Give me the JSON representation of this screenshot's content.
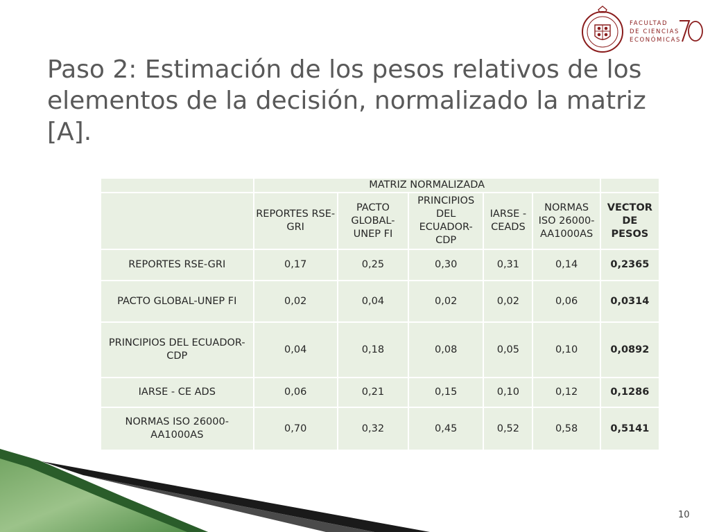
{
  "logo": {
    "line1": "FACULTAD",
    "line2": "DE CIENCIAS",
    "line3": "ECONÓMICAS",
    "anniversary": "70",
    "brand_color": "#8a1c1c"
  },
  "slide": {
    "title": "Paso 2: Estimación de los pesos relativos de los elementos de la decisión, normalizado la matriz [A].",
    "page_number": "10"
  },
  "table": {
    "group_header": "MATRIZ NORMALIZADA",
    "columns": [
      "REPORTES RSE-GRI",
      "PACTO GLOBAL-UNEP FI",
      "PRINCIPIOS DEL ECUADOR-CDP",
      "IARSE - CEADS",
      "NORMAS ISO 26000-AA1000AS"
    ],
    "vector_header": "VECTOR DE PESOS",
    "rows": [
      {
        "label": "REPORTES RSE-GRI",
        "values": [
          "0,17",
          "0,25",
          "0,30",
          "0,31",
          "0,14"
        ],
        "weight": "0,2365"
      },
      {
        "label": "PACTO GLOBAL-UNEP FI",
        "values": [
          "0,02",
          "0,04",
          "0,02",
          "0,02",
          "0,06"
        ],
        "weight": "0,0314"
      },
      {
        "label": "PRINCIPIOS DEL ECUADOR-CDP",
        "values": [
          "0,04",
          "0,18",
          "0,08",
          "0,05",
          "0,10"
        ],
        "weight": "0,0892"
      },
      {
        "label": "IARSE - CE ADS",
        "values": [
          "0,06",
          "0,21",
          "0,15",
          "0,10",
          "0,12"
        ],
        "weight": "0,1286"
      },
      {
        "label": "NORMAS ISO 26000-AA1000AS",
        "values": [
          "0,70",
          "0,32",
          "0,45",
          "0,52",
          "0,58"
        ],
        "weight": "0,5141"
      }
    ]
  },
  "colors": {
    "title": "#595959",
    "cell_background": "#e9f0e3",
    "decor_green": "#3d7a3a"
  }
}
